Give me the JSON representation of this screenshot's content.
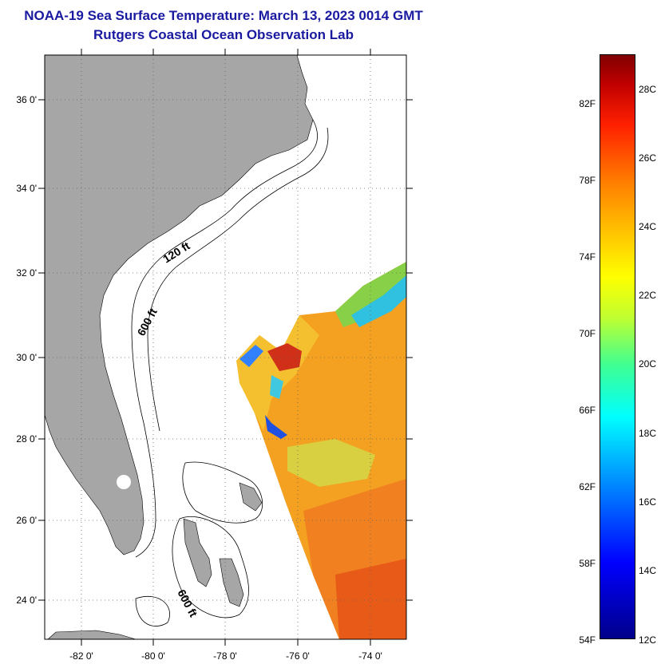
{
  "title": "NOAA-19 Sea Surface Temperature:  March 13, 2023 0014 GMT",
  "subtitle": "Rutgers Coastal Ocean Observation Lab",
  "map": {
    "latitude_labels": [
      "36 0'",
      "34 0'",
      "32 0'",
      "30 0'",
      "28 0'",
      "26 0'",
      "24 0'"
    ],
    "longitude_labels": [
      "-82 0'",
      "-80 0'",
      "-78 0'",
      "-76 0'",
      "-74 0'"
    ],
    "contour_labels": [
      "120 ft",
      "600 ft",
      "600 ft"
    ],
    "colors": {
      "land": "#a6a6a6",
      "water": "#ffffff",
      "title": "#1a1aa0"
    }
  },
  "colorbar": {
    "fahrenheit_labels": [
      "82F",
      "78F",
      "74F",
      "70F",
      "66F",
      "62F",
      "58F",
      "54F"
    ],
    "celsius_labels": [
      "28C",
      "26C",
      "24C",
      "22C",
      "20C",
      "18C",
      "16C",
      "14C",
      "12C"
    ],
    "low_color": "#00008a",
    "high_color": "#800000"
  }
}
